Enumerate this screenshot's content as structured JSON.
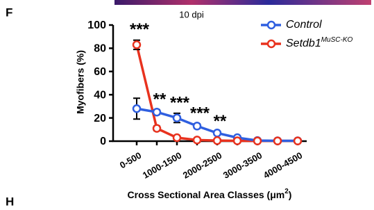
{
  "panel_label": "F",
  "next_panel": {
    "label": "H"
  },
  "chart_data": {
    "type": "line",
    "subtitle": "10 dpi",
    "ylabel": "Myofibers (%)",
    "xlabel": {
      "text": "Cross Sectional Area Classes (μm",
      "superscript": "2",
      "suffix": ")"
    },
    "categories": [
      "0-500",
      null,
      "1000-1500",
      null,
      "2000-2500",
      null,
      "3000-3500",
      null,
      "4000-4500"
    ],
    "series": [
      {
        "name": "Control",
        "color": "#2f5fe0",
        "values": [
          28,
          25,
          20,
          13,
          7,
          3,
          0.5,
          0.3,
          0.3
        ],
        "errors": [
          9,
          2,
          4,
          2,
          1,
          0.5,
          0.3,
          0.2,
          0.2
        ]
      },
      {
        "name": "Setdb1",
        "name_superscript": "MuSC-KO",
        "color": "#e8321e",
        "values": [
          83,
          11,
          3,
          1,
          0.5,
          0.3,
          0.2,
          0.2,
          0.2
        ],
        "errors": [
          4,
          2,
          1,
          0.3,
          0.2,
          0.1,
          0.1,
          0.1,
          0.1
        ]
      }
    ],
    "significance": [
      "***",
      "**",
      "***",
      "***",
      "**",
      null,
      null,
      null,
      null
    ],
    "ylim": [
      0,
      100
    ],
    "yticks": [
      0,
      20,
      40,
      60,
      80,
      100
    ],
    "legend": "top-right",
    "grid": false
  }
}
